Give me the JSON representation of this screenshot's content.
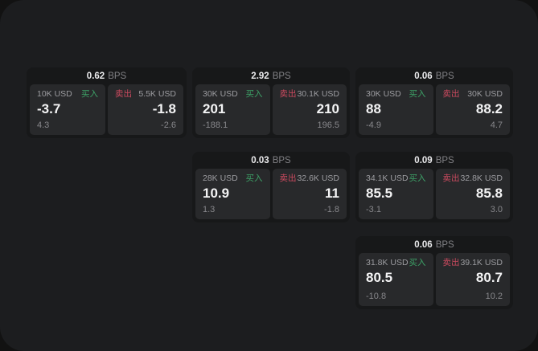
{
  "bps_unit": "BPS",
  "side_labels": {
    "buy": "买入",
    "sell": "卖出"
  },
  "colors": {
    "window_bg": "#1c1d1f",
    "card_bg": "#171819",
    "panel_bg": "#28292b",
    "label_gray": "#9c9ca0",
    "dim_gray": "#87878b",
    "big_white": "#f4f4f5",
    "header_num": "#ebebed",
    "header_unit": "#808084",
    "buy_green": "#3da267",
    "sell_red": "#cc4a5f"
  },
  "cards": [
    {
      "bps": "0.62",
      "buy": {
        "amount": "10K USD",
        "price": "-3.7",
        "change": "4.3"
      },
      "sell": {
        "amount": "5.5K USD",
        "price": "-1.8",
        "change": "-2.6"
      }
    },
    {
      "bps": "2.92",
      "buy": {
        "amount": "30K USD",
        "price": "201",
        "change": "-188.1"
      },
      "sell": {
        "amount": "30.1K USD",
        "price": "210",
        "change": "196.5"
      }
    },
    {
      "bps": "0.06",
      "buy": {
        "amount": "30K USD",
        "price": "88",
        "change": "-4.9"
      },
      "sell": {
        "amount": "30K USD",
        "price": "88.2",
        "change": "4.7"
      }
    },
    {
      "bps": "0.03",
      "buy": {
        "amount": "28K USD",
        "price": "10.9",
        "change": "1.3"
      },
      "sell": {
        "amount": "32.6K USD",
        "price": "11",
        "change": "-1.8"
      }
    },
    {
      "bps": "0.09",
      "buy": {
        "amount": "34.1K USD",
        "price": "85.5",
        "change": "-3.1"
      },
      "sell": {
        "amount": "32.8K USD",
        "price": "85.8",
        "change": "3.0"
      }
    },
    {
      "bps": "0.06",
      "buy": {
        "amount": "31.8K USD",
        "price": "80.5",
        "change": "-10.8"
      },
      "sell": {
        "amount": "39.1K USD",
        "price": "80.7",
        "change": "10.2"
      }
    }
  ]
}
